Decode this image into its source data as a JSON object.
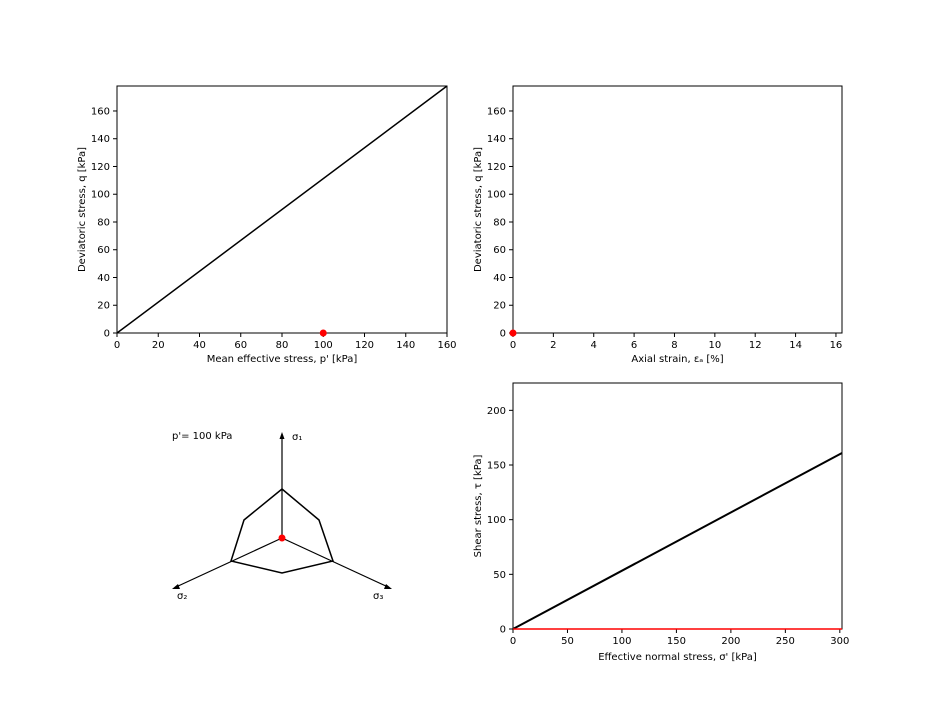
{
  "chart_data": [
    {
      "type": "line",
      "xlabel": "Mean effective stress, p' [kPa]",
      "ylabel": "Deviatoric stress, q [kPa]",
      "xlim": [
        0,
        160
      ],
      "ylim": [
        0,
        178
      ],
      "xticks": [
        0,
        20,
        40,
        60,
        80,
        100,
        120,
        140,
        160
      ],
      "yticks": [
        0,
        20,
        40,
        60,
        80,
        100,
        120,
        140,
        160
      ],
      "series": [
        {
          "kind": "line",
          "color": "#000000",
          "x": [
            0,
            160
          ],
          "y": [
            0,
            178
          ]
        },
        {
          "kind": "marker",
          "color": "#ff0000",
          "x": [
            100
          ],
          "y": [
            0
          ]
        }
      ]
    },
    {
      "type": "line",
      "xlabel": "Axial strain, εₐ [%]",
      "ylabel": "Deviatoric stress, q [kPa]",
      "xlim": [
        0,
        16.3
      ],
      "ylim": [
        0,
        178
      ],
      "xticks": [
        0,
        2,
        4,
        6,
        8,
        10,
        12,
        14,
        16
      ],
      "yticks": [
        0,
        20,
        40,
        60,
        80,
        100,
        120,
        140,
        160
      ],
      "series": [
        {
          "kind": "marker",
          "color": "#ff0000",
          "x": [
            0
          ],
          "y": [
            0
          ]
        }
      ]
    },
    {
      "type": "line",
      "xlabel": "Effective normal stress, σ' [kPa]",
      "ylabel": "Shear stress, τ [kPa]",
      "xlim": [
        0,
        302
      ],
      "ylim": [
        0,
        225
      ],
      "xticks": [
        0,
        50,
        100,
        150,
        200,
        250,
        300
      ],
      "yticks": [
        0,
        50,
        100,
        150,
        200
      ],
      "series": [
        {
          "kind": "line",
          "color": "#000000",
          "x": [
            0,
            302
          ],
          "y": [
            0,
            161
          ]
        },
        {
          "kind": "line",
          "color": "#ff0000",
          "x": [
            0,
            302
          ],
          "y": [
            0,
            0
          ]
        }
      ]
    }
  ],
  "pi_plane": {
    "annotation": "p'= 100 kPa",
    "axis_labels": [
      "σ₁",
      "σ₂",
      "σ₃"
    ],
    "marker_color": "#ff0000",
    "line_color": "#000000"
  }
}
